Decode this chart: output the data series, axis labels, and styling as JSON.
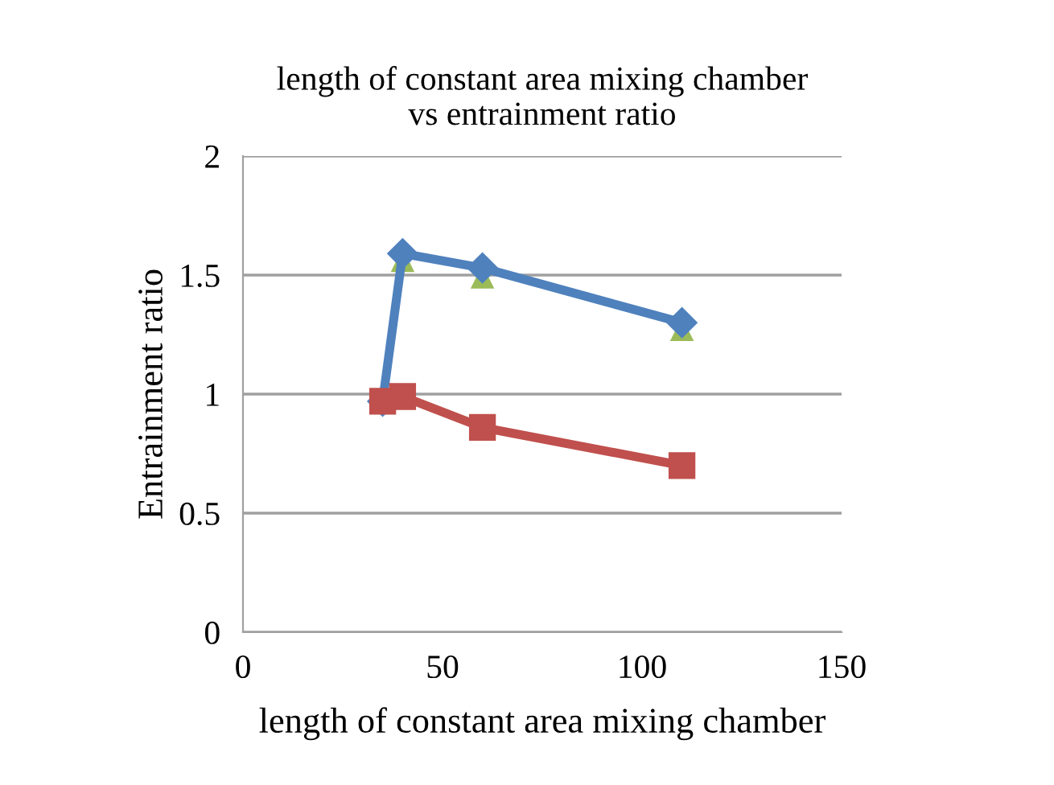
{
  "chart_data": {
    "type": "line",
    "title": "length of constant area mixing chamber\nvs entrainment ratio",
    "xlabel": "length of constant area mixing chamber",
    "ylabel": "Entrainment ratio",
    "xlim": [
      0,
      150
    ],
    "xticks": [
      0,
      50,
      100,
      150
    ],
    "ylim": [
      0,
      2
    ],
    "yticks": [
      0,
      0.5,
      1,
      1.5,
      2
    ],
    "grid": "y",
    "legend": false,
    "series": [
      {
        "type": "scatter",
        "color": "#9bbb59",
        "marker": "triangle",
        "x": [
          40,
          60,
          110
        ],
        "values": [
          1.56,
          1.49,
          1.27
        ]
      },
      {
        "color": "#4f81bd",
        "marker": "diamond",
        "x": [
          35,
          40,
          60,
          110
        ],
        "values": [
          0.97,
          1.59,
          1.53,
          1.3
        ]
      },
      {
        "color": "#c0504d",
        "marker": "square",
        "x": [
          35,
          40,
          60,
          110
        ],
        "values": [
          0.97,
          0.99,
          0.86,
          0.7
        ]
      }
    ]
  }
}
